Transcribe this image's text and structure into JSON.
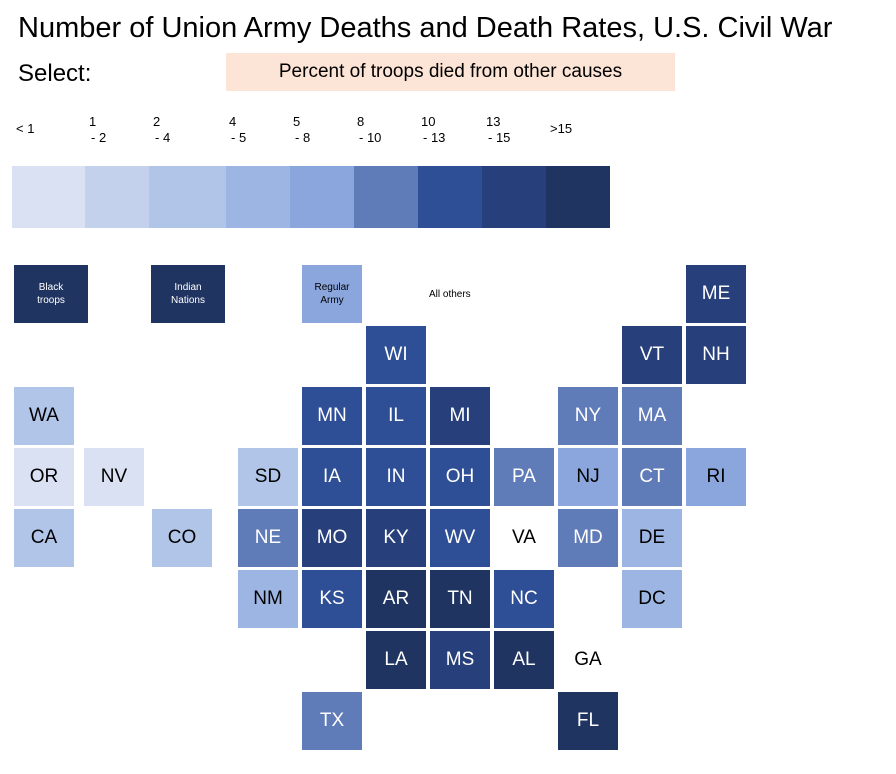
{
  "title": "Number of Union Army Deaths and Death Rates, U.S. Civil War",
  "select_label": "Select:",
  "selected_measure": "Percent of troops died from other causes",
  "colors": {
    "bins": [
      "#dae1f2",
      "#c3d1ec",
      "#b1c5e8",
      "#9db5e2",
      "#8aa6dc",
      "#5f7bb8",
      "#2e4e95",
      "#273f7b",
      "#203462"
    ],
    "text_light": "#ffffff",
    "text_dark": "#000000",
    "selector_bg": "#fce4d6"
  },
  "chart_data": {
    "type": "heatmap",
    "subtype": "tile-grid-map",
    "legend": [
      {
        "line1": "< 1",
        "line2": ""
      },
      {
        "line1": "1",
        "line2": "- 2"
      },
      {
        "line1": "2",
        "line2": "- 4"
      },
      {
        "line1": "4",
        "line2": "- 5"
      },
      {
        "line1": "5",
        "line2": "- 8"
      },
      {
        "line1": "8",
        "line2": "- 10"
      },
      {
        "line1": "10",
        "line2": "- 13"
      },
      {
        "line1": "13",
        "line2": "- 15"
      },
      {
        "line1": ">15",
        "line2": ""
      }
    ],
    "tiles": [
      {
        "label": "Black troops",
        "line1": "Black",
        "line2": "troops",
        "col": 0,
        "row": 0,
        "bin": 8
      },
      {
        "label": "Indian Nations",
        "line1": "Indian",
        "line2": "Nations",
        "col": 2,
        "row": 0,
        "bin": 8
      },
      {
        "label": "Regular Army",
        "line1": "Regular",
        "line2": "Army",
        "col": 4.5,
        "row": 0,
        "bin": 4
      },
      {
        "label": "ME",
        "col": 10.5,
        "row": 0,
        "bin": 7
      },
      {
        "label": "WI",
        "col": 5.5,
        "row": 1,
        "bin": 6
      },
      {
        "label": "VT",
        "col": 9.5,
        "row": 1,
        "bin": 7
      },
      {
        "label": "NH",
        "col": 10.5,
        "row": 1,
        "bin": 7
      },
      {
        "label": "WA",
        "col": 0,
        "row": 2,
        "bin": 2
      },
      {
        "label": "MN",
        "col": 4.5,
        "row": 2,
        "bin": 6
      },
      {
        "label": "IL",
        "col": 5.5,
        "row": 2,
        "bin": 6
      },
      {
        "label": "MI",
        "col": 6.5,
        "row": 2,
        "bin": 7
      },
      {
        "label": "NY",
        "col": 8.5,
        "row": 2,
        "bin": 5
      },
      {
        "label": "MA",
        "col": 9.5,
        "row": 2,
        "bin": 5
      },
      {
        "label": "OR",
        "col": 0,
        "row": 3,
        "bin": 0
      },
      {
        "label": "NV",
        "col": 1.1,
        "row": 3,
        "bin": 0
      },
      {
        "label": "SD",
        "col": 3.5,
        "row": 3,
        "bin": 2
      },
      {
        "label": "IA",
        "col": 4.5,
        "row": 3,
        "bin": 6
      },
      {
        "label": "IN",
        "col": 5.5,
        "row": 3,
        "bin": 6
      },
      {
        "label": "OH",
        "col": 6.5,
        "row": 3,
        "bin": 6
      },
      {
        "label": "PA",
        "col": 7.5,
        "row": 3,
        "bin": 5
      },
      {
        "label": "NJ",
        "col": 8.5,
        "row": 3,
        "bin": 4
      },
      {
        "label": "CT",
        "col": 9.5,
        "row": 3,
        "bin": 5
      },
      {
        "label": "RI",
        "col": 10.5,
        "row": 3,
        "bin": 4
      },
      {
        "label": "CA",
        "col": 0,
        "row": 4,
        "bin": 2
      },
      {
        "label": "CO",
        "col": 2.15,
        "row": 4,
        "bin": 2
      },
      {
        "label": "NE",
        "col": 3.5,
        "row": 4,
        "bin": 5
      },
      {
        "label": "MO",
        "col": 4.5,
        "row": 4,
        "bin": 7
      },
      {
        "label": "KY",
        "col": 5.5,
        "row": 4,
        "bin": 7
      },
      {
        "label": "WV",
        "col": 6.5,
        "row": 4,
        "bin": 6
      },
      {
        "label": "VA",
        "col": 7.5,
        "row": 4,
        "bin": null
      },
      {
        "label": "MD",
        "col": 8.5,
        "row": 4,
        "bin": 5
      },
      {
        "label": "DE",
        "col": 9.5,
        "row": 4,
        "bin": 3
      },
      {
        "label": "NM",
        "col": 3.5,
        "row": 5,
        "bin": 3
      },
      {
        "label": "KS",
        "col": 4.5,
        "row": 5,
        "bin": 6
      },
      {
        "label": "AR",
        "col": 5.5,
        "row": 5,
        "bin": 8
      },
      {
        "label": "TN",
        "col": 6.5,
        "row": 5,
        "bin": 8
      },
      {
        "label": "NC",
        "col": 7.5,
        "row": 5,
        "bin": 6
      },
      {
        "label": "DC",
        "col": 9.5,
        "row": 5,
        "bin": 3
      },
      {
        "label": "LA",
        "col": 5.5,
        "row": 6,
        "bin": 8
      },
      {
        "label": "MS",
        "col": 6.5,
        "row": 6,
        "bin": 7
      },
      {
        "label": "AL",
        "col": 7.5,
        "row": 6,
        "bin": 8
      },
      {
        "label": "GA",
        "col": 8.5,
        "row": 6,
        "bin": null
      },
      {
        "label": "TX",
        "col": 4.5,
        "row": 7,
        "bin": 5
      },
      {
        "label": "FL",
        "col": 8.5,
        "row": 7,
        "bin": 8
      }
    ],
    "all_others_label": "All others"
  }
}
